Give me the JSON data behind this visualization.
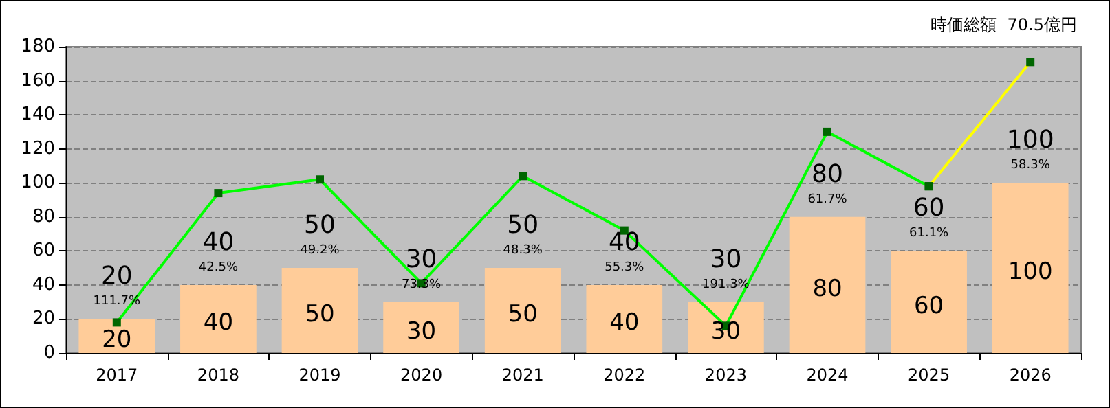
{
  "chart_data": {
    "type": "bar",
    "title": "時価総額  70.5億円",
    "categories": [
      "2017",
      "2018",
      "2019",
      "2020",
      "2021",
      "2022",
      "2023",
      "2024",
      "2025",
      "2026"
    ],
    "series": [
      {
        "color": "#ffcc99",
        "values": [
          20,
          40,
          50,
          30,
          50,
          40,
          30,
          80,
          60,
          100
        ],
        "value_labels": [
          "20",
          "40",
          "50",
          "30",
          "50",
          "40",
          "30",
          "80",
          "60",
          "100"
        ]
      },
      {
        "type": "line",
        "color": "#00ff00",
        "values": [
          18,
          94,
          102,
          41,
          104,
          72,
          16,
          130,
          98,
          null
        ]
      },
      {
        "type": "line",
        "color": "#ffff00",
        "values": [
          null,
          null,
          null,
          null,
          null,
          null,
          null,
          null,
          98,
          171
        ]
      }
    ],
    "annotations": [
      {
        "text": "111.7%",
        "x": "2017",
        "y": 20
      },
      {
        "text": "42.5%",
        "x": "2018",
        "y": 40
      },
      {
        "text": "49.2%",
        "x": "2019",
        "y": 50
      },
      {
        "text": "73.3%",
        "x": "2020",
        "y": 30
      },
      {
        "text": "48.3%",
        "x": "2021",
        "y": 50
      },
      {
        "text": "55.3%",
        "x": "2022",
        "y": 40
      },
      {
        "text": "191.3%",
        "x": "2023",
        "y": 30
      },
      {
        "text": "61.7%",
        "x": "2024",
        "y": 80
      },
      {
        "text": "61.1%",
        "x": "2025",
        "y": 60
      },
      {
        "text": "58.3%",
        "x": "2026",
        "y": 100
      }
    ],
    "ylim": [
      0,
      180
    ],
    "yticks": [
      0,
      20,
      40,
      60,
      80,
      100,
      120,
      140,
      160,
      180
    ],
    "grid": "y",
    "marker": "square",
    "line_style": "solid"
  }
}
